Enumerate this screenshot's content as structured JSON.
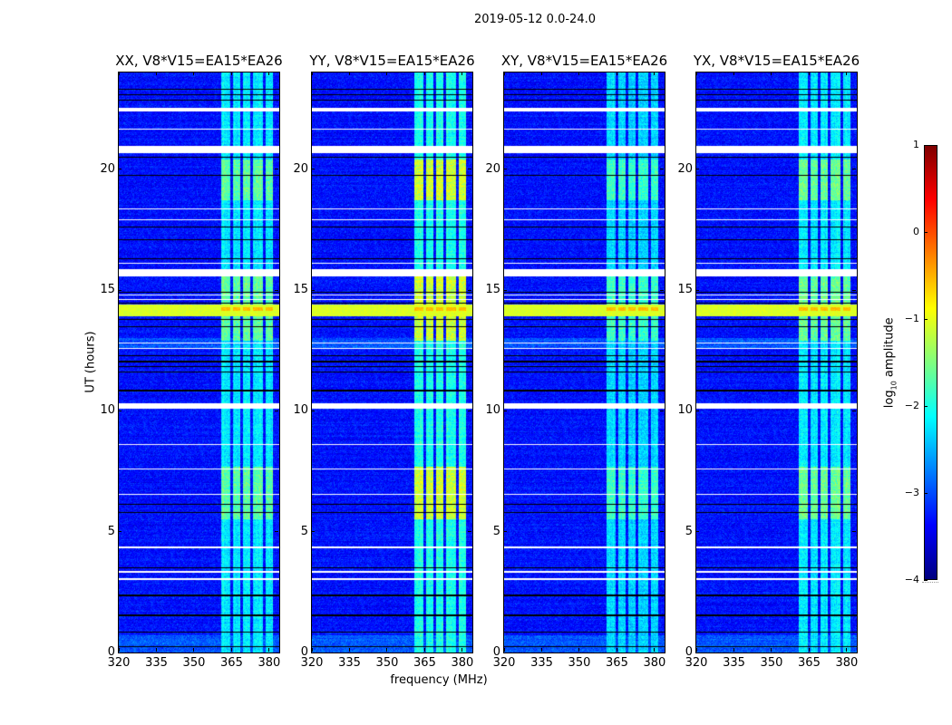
{
  "figure_title": "2019-05-12 0.0-24.0",
  "chart_data": {
    "type": "heatmap",
    "xlabel": "frequency (MHz)",
    "ylabel": "UT (hours)",
    "xlim": [
      320,
      384
    ],
    "ylim": [
      0,
      24
    ],
    "xticks": [
      320,
      335,
      350,
      365,
      380
    ],
    "yticks": [
      0,
      5,
      10,
      15,
      20
    ],
    "panels": [
      {
        "title": "XX, V8*V15=EA15*EA26",
        "rfi_level": -2.2,
        "rfi_boost": 0.7
      },
      {
        "title": "YY, V8*V15=EA15*EA26",
        "rfi_level": -2.0,
        "rfi_boost": 1.1
      },
      {
        "title": "XY, V8*V15=EA15*EA26",
        "rfi_level": -2.3,
        "rfi_boost": 0.6
      },
      {
        "title": "YX, V8*V15=EA15*EA26",
        "rfi_level": -2.2,
        "rfi_boost": 0.75
      }
    ],
    "colorbar": {
      "label_prefix": "log",
      "label_subscript": "10",
      "label_suffix": " amplitude",
      "range": [
        -4,
        1
      ],
      "ticks": [
        -4,
        -3,
        -2,
        -1,
        0,
        1
      ],
      "tick_labels": [
        "−4",
        "−3",
        "−2",
        "−1",
        "0",
        "1"
      ],
      "colormap": "jet"
    },
    "background_level": -3.3,
    "rfi_freq_ranges_mhz": [
      [
        361,
        364.5
      ],
      [
        365.5,
        368.5
      ],
      [
        369.5,
        372.5
      ],
      [
        373.5,
        377.5
      ],
      [
        378.5,
        381.5
      ]
    ],
    "rfi_strong_time_ranges_h": [
      [
        5.5,
        7.7
      ],
      [
        12.9,
        15.6
      ],
      [
        18.7,
        20.4
      ]
    ],
    "broadband_rfi_time_ranges_h": [
      [
        13.9,
        14.4
      ]
    ],
    "flagged_time_ranges_h": [
      [
        22.4,
        22.55
      ],
      [
        20.67,
        20.98
      ],
      [
        15.57,
        15.87
      ],
      [
        10.1,
        10.32
      ]
    ],
    "thin_flagged_times_h": [
      21.65,
      18.35,
      17.9,
      16.1,
      14.78,
      14.6,
      12.8,
      12.57,
      8.6,
      7.6,
      6.53,
      4.35,
      3.34,
      3.04
    ],
    "dropout_times_h": [
      23.3,
      23.08,
      22.85,
      20.49,
      19.74,
      17.6,
      17.07,
      16.28,
      14.9,
      14.45,
      13.77,
      13.47,
      12.27,
      12.04,
      11.82,
      11.6,
      10.84,
      6.12,
      5.78,
      3.5,
      2.36,
      1.54,
      0.83,
      0.23
    ]
  }
}
